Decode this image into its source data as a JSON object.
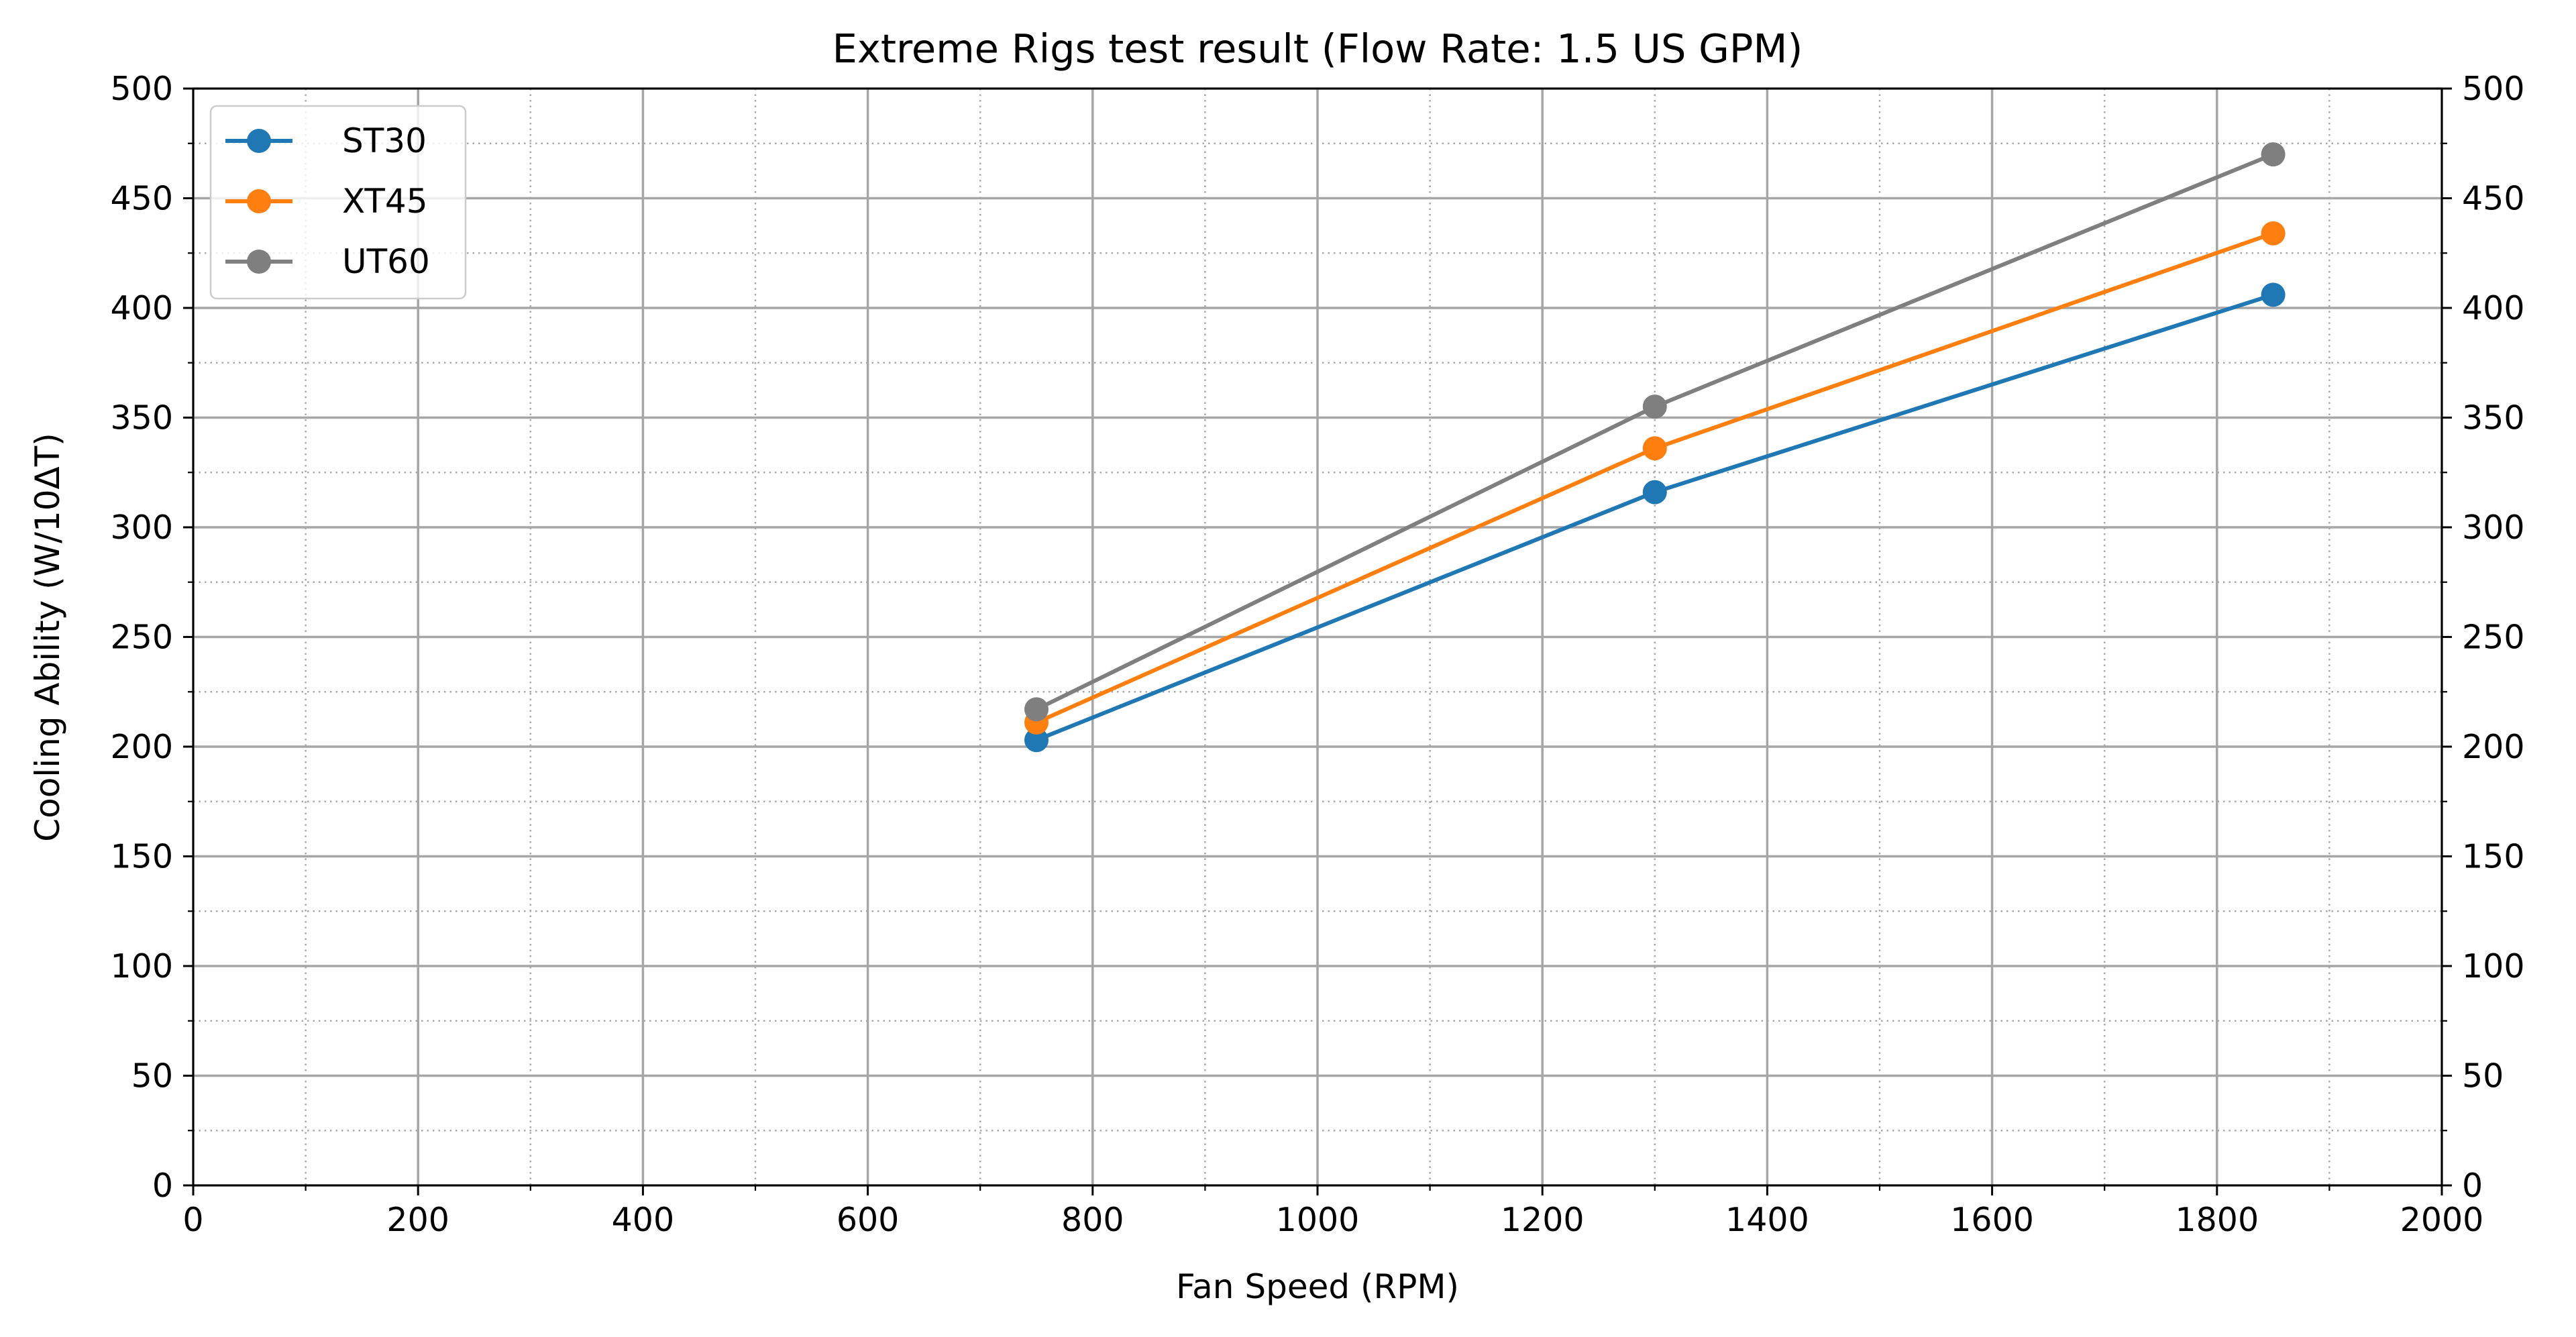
{
  "chart_data": {
    "type": "line",
    "title": "Extreme Rigs test result (Flow Rate: 1.5 US GPM)",
    "xlabel": "Fan Speed (RPM)",
    "ylabel": "Cooling Ability (W/10ΔT)",
    "xlim": [
      0,
      2000
    ],
    "ylim": [
      0,
      500
    ],
    "x_major_ticks": [
      0,
      200,
      400,
      600,
      800,
      1000,
      1200,
      1400,
      1600,
      1800,
      2000
    ],
    "x_minor_ticks": [
      100,
      300,
      500,
      700,
      900,
      1100,
      1300,
      1500,
      1700,
      1900
    ],
    "y_major_ticks": [
      0,
      50,
      100,
      150,
      200,
      250,
      300,
      350,
      400,
      450,
      500
    ],
    "y_minor_ticks": [
      25,
      75,
      125,
      175,
      225,
      275,
      325,
      375,
      425,
      475
    ],
    "x_tick_labels": [
      "0",
      "200",
      "400",
      "600",
      "800",
      "1000",
      "1200",
      "1400",
      "1600",
      "1800",
      "2000"
    ],
    "y_tick_labels": [
      "0",
      "50",
      "100",
      "150",
      "200",
      "250",
      "300",
      "350",
      "400",
      "450",
      "500"
    ],
    "grid": true,
    "secondary_y_axis": true,
    "legend_position": "top-left",
    "series": [
      {
        "name": "ST30",
        "color": "#1f77b4",
        "x": [
          750,
          1300,
          1850
        ],
        "y": [
          203,
          316,
          406
        ]
      },
      {
        "name": "XT45",
        "color": "#ff7f0e",
        "x": [
          750,
          1300,
          1850
        ],
        "y": [
          211,
          336,
          434
        ]
      },
      {
        "name": "UT60",
        "color": "#7f7f7f",
        "x": [
          750,
          1300,
          1850
        ],
        "y": [
          217,
          355,
          470
        ]
      }
    ]
  }
}
